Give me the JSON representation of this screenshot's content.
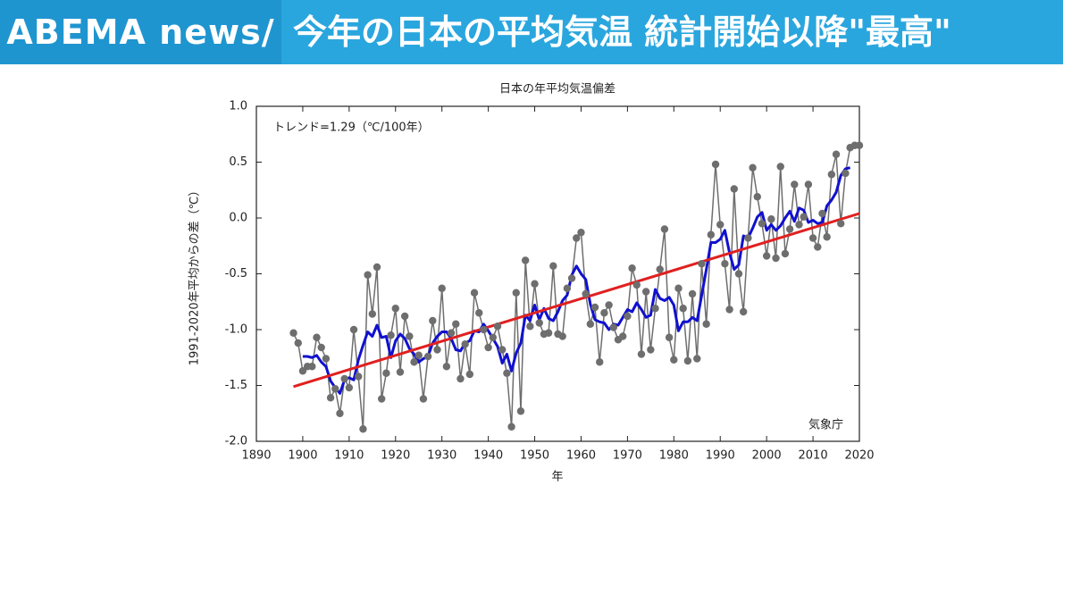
{
  "header": {
    "brand": "ABEMA news/",
    "headline": "今年の日本の平均気温 統計開始以降\"最高\""
  },
  "chart_data": {
    "type": "line",
    "title": "日本の年平均気温偏差",
    "x_label": "年",
    "y_label": "1991-2020年平均からの差（℃）",
    "annotations": [
      "トレンド=1.29（℃/100年）",
      "気象庁"
    ],
    "x": [
      1898,
      1899,
      1900,
      1901,
      1902,
      1903,
      1904,
      1905,
      1906,
      1907,
      1908,
      1909,
      1910,
      1911,
      1912,
      1913,
      1914,
      1915,
      1916,
      1917,
      1918,
      1919,
      1920,
      1921,
      1922,
      1923,
      1924,
      1925,
      1926,
      1927,
      1928,
      1929,
      1930,
      1931,
      1932,
      1933,
      1934,
      1935,
      1936,
      1937,
      1938,
      1939,
      1940,
      1941,
      1942,
      1943,
      1944,
      1945,
      1946,
      1947,
      1948,
      1949,
      1950,
      1951,
      1952,
      1953,
      1954,
      1955,
      1956,
      1957,
      1958,
      1959,
      1960,
      1961,
      1962,
      1963,
      1964,
      1965,
      1966,
      1967,
      1968,
      1969,
      1970,
      1971,
      1972,
      1973,
      1974,
      1975,
      1976,
      1977,
      1978,
      1979,
      1980,
      1981,
      1982,
      1983,
      1984,
      1985,
      1986,
      1987,
      1988,
      1989,
      1990,
      1991,
      1992,
      1993,
      1994,
      1995,
      1996,
      1997,
      1998,
      1999,
      2000,
      2001,
      2002,
      2003,
      2004,
      2005,
      2006,
      2007,
      2008,
      2009,
      2010,
      2011,
      2012,
      2013,
      2014,
      2015,
      2016,
      2017,
      2018,
      2019,
      2020
    ],
    "series": [
      {
        "color": "#6e6e6e",
        "values": [
          -1.03,
          -1.12,
          -1.37,
          -1.33,
          -1.33,
          -1.07,
          -1.16,
          -1.26,
          -1.61,
          -1.53,
          -1.75,
          -1.44,
          -1.52,
          -1.0,
          -1.42,
          -1.89,
          -0.51,
          -0.86,
          -0.44,
          -1.62,
          -1.39,
          -1.05,
          -0.81,
          -1.38,
          -0.88,
          -1.06,
          -1.29,
          -1.23,
          -1.62,
          -1.24,
          -0.92,
          -1.18,
          -0.63,
          -1.33,
          -1.03,
          -0.95,
          -1.44,
          -1.13,
          -1.4,
          -0.67,
          -0.85,
          -1.0,
          -1.16,
          -1.07,
          -0.97,
          -1.18,
          -1.39,
          -1.87,
          -0.67,
          -1.73,
          -0.38,
          -0.97,
          -0.59,
          -0.94,
          -1.04,
          -1.03,
          -0.43,
          -1.04,
          -1.06,
          -0.63,
          -0.54,
          -0.18,
          -0.13,
          -0.68,
          -0.95,
          -0.8,
          -1.29,
          -0.85,
          -0.78,
          -0.98,
          -1.09,
          -1.06,
          -0.88,
          -0.45,
          -0.6,
          -1.22,
          -0.66,
          -1.18,
          -0.81,
          -0.46,
          -0.1,
          -1.07,
          -1.27,
          -0.63,
          -0.81,
          -1.28,
          -0.68,
          -1.26,
          -0.41,
          -0.95,
          -0.15,
          0.48,
          -0.06,
          -0.41,
          -0.82,
          0.26,
          -0.5,
          -0.84,
          -0.18,
          0.45,
          0.19,
          -0.05,
          -0.34,
          -0.01,
          -0.36,
          0.46,
          -0.32,
          -0.1,
          0.3,
          -0.06,
          0.01,
          0.3,
          -0.18,
          -0.26,
          0.04,
          -0.17,
          0.39,
          0.57,
          -0.05,
          0.4,
          0.63,
          0.65,
          0.65
        ]
      },
      {
        "color": "#1010d0",
        "values": [
          null,
          null,
          -1.24,
          -1.24,
          -1.25,
          -1.23,
          -1.29,
          -1.33,
          -1.46,
          -1.52,
          -1.57,
          -1.45,
          -1.43,
          -1.45,
          -1.27,
          -1.14,
          -1.02,
          -1.06,
          -0.96,
          -1.07,
          -1.06,
          -1.25,
          -1.1,
          -1.04,
          -1.08,
          -1.17,
          -1.22,
          -1.29,
          -1.26,
          -1.24,
          -1.12,
          -1.06,
          -1.02,
          -1.02,
          -1.08,
          -1.18,
          -1.19,
          -1.12,
          -1.1,
          -1.01,
          -1.02,
          -0.95,
          -1.01,
          -1.08,
          -1.15,
          -1.3,
          -1.22,
          -1.37,
          -1.21,
          -1.12,
          -0.87,
          -0.92,
          -0.78,
          -0.91,
          -0.81,
          -0.9,
          -0.92,
          -0.84,
          -0.74,
          -0.69,
          -0.51,
          -0.43,
          -0.5,
          -0.55,
          -0.77,
          -0.91,
          -0.93,
          -0.94,
          -1.0,
          -0.95,
          -0.96,
          -0.89,
          -0.82,
          -0.84,
          -0.76,
          -0.82,
          -0.89,
          -0.87,
          -0.64,
          -0.72,
          -0.74,
          -0.71,
          -0.78,
          -1.01,
          -0.93,
          -0.93,
          -0.89,
          -0.92,
          -0.69,
          -0.46,
          -0.22,
          -0.22,
          -0.19,
          -0.11,
          -0.31,
          -0.46,
          -0.42,
          -0.16,
          -0.18,
          -0.09,
          0.01,
          0.05,
          -0.11,
          -0.06,
          -0.11,
          -0.07,
          0.0,
          0.06,
          -0.03,
          0.09,
          0.07,
          -0.04,
          -0.02,
          -0.05,
          -0.04,
          0.11,
          0.16,
          0.23,
          0.38,
          0.44,
          0.45,
          null,
          null
        ]
      }
    ],
    "trend": {
      "color": "#e02020",
      "x": [
        1898,
        2020
      ],
      "values": [
        -1.51,
        0.04
      ]
    },
    "xlim": [
      1890,
      2020
    ],
    "xticks": [
      1890,
      1900,
      1910,
      1920,
      1930,
      1940,
      1950,
      1960,
      1970,
      1980,
      1990,
      2000,
      2010,
      2020
    ],
    "ylim": [
      -2,
      1
    ],
    "yticks": [
      {
        "value": 1,
        "label": "1.0"
      },
      {
        "value": 0.5,
        "label": "0.5"
      },
      {
        "value": 0,
        "label": "0.0"
      },
      {
        "value": -0.5,
        "label": "-0.5"
      },
      {
        "value": -1,
        "label": "-1.0"
      },
      {
        "value": -1.5,
        "label": "-1.5"
      },
      {
        "value": -2,
        "label": "-2.0"
      }
    ]
  }
}
